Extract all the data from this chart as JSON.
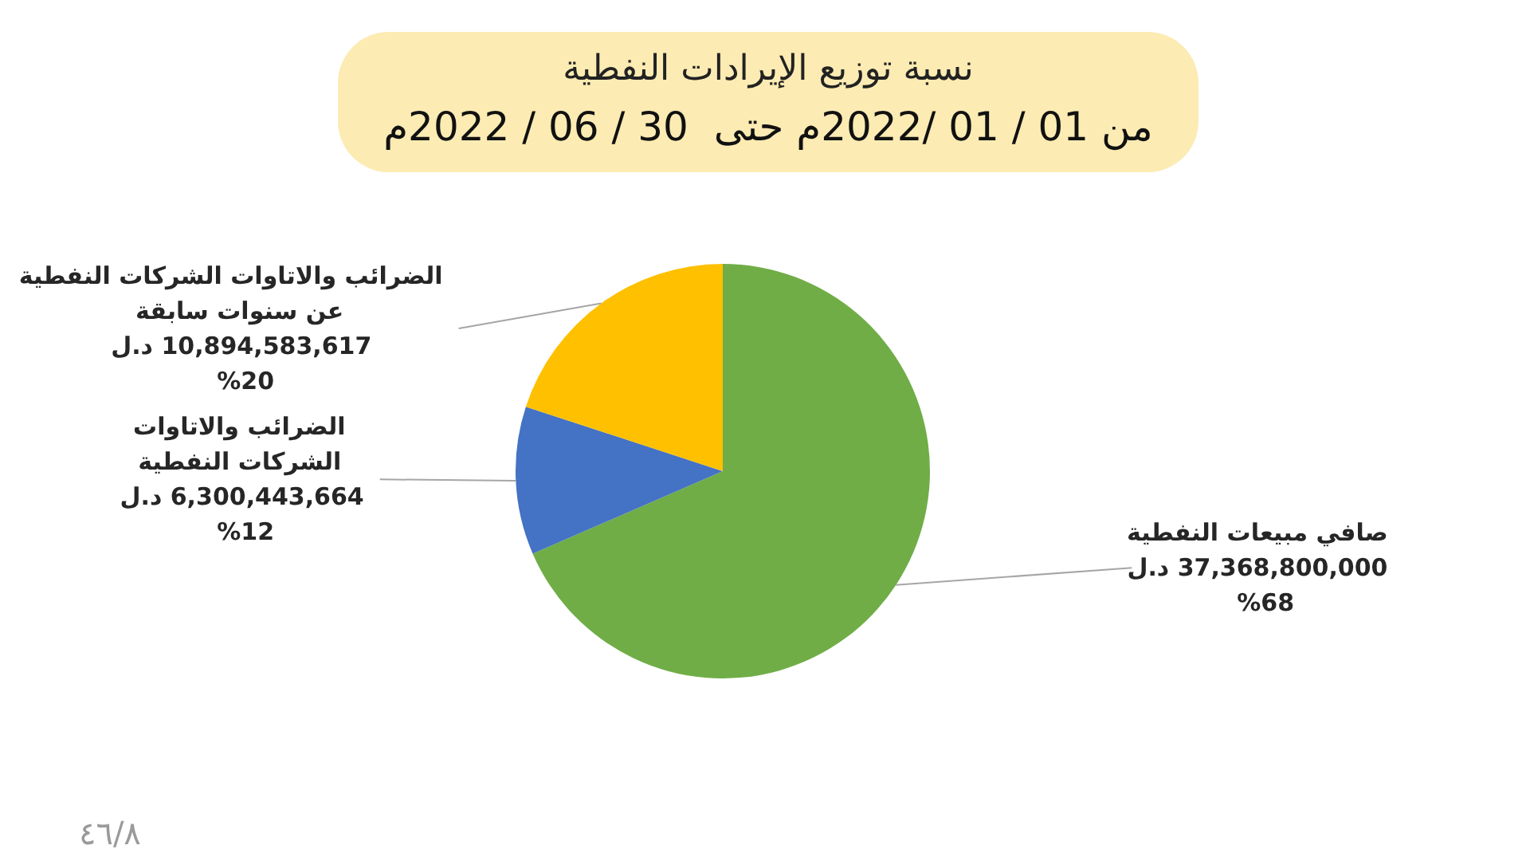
{
  "chart_data": {
    "type": "pie",
    "title": "نسبة توزيع الإيرادات النفطية",
    "subtitle": "من 01 / 01 /2022م حتى  30 / 06 / 2022م",
    "categories": [
      "صافي مبيعات النفطية",
      "الضرائب والاتاوات\nالشركات النفطية",
      "الضرائب والاتاوات الشركات النفطية\nعن سنوات سابقة"
    ],
    "values": [
      37368800000,
      6300443664,
      10894583617
    ],
    "colors": [
      "#70ad47",
      "#4472c4",
      "#ffc000"
    ],
    "value_labels": [
      "37,368,800,000 د.ل\n%68",
      "6,300,443,664  د.ل\n%12",
      "10,894,583,617  د.ل\n%20"
    ],
    "annotations": [
      "٤٦/٨"
    ]
  }
}
